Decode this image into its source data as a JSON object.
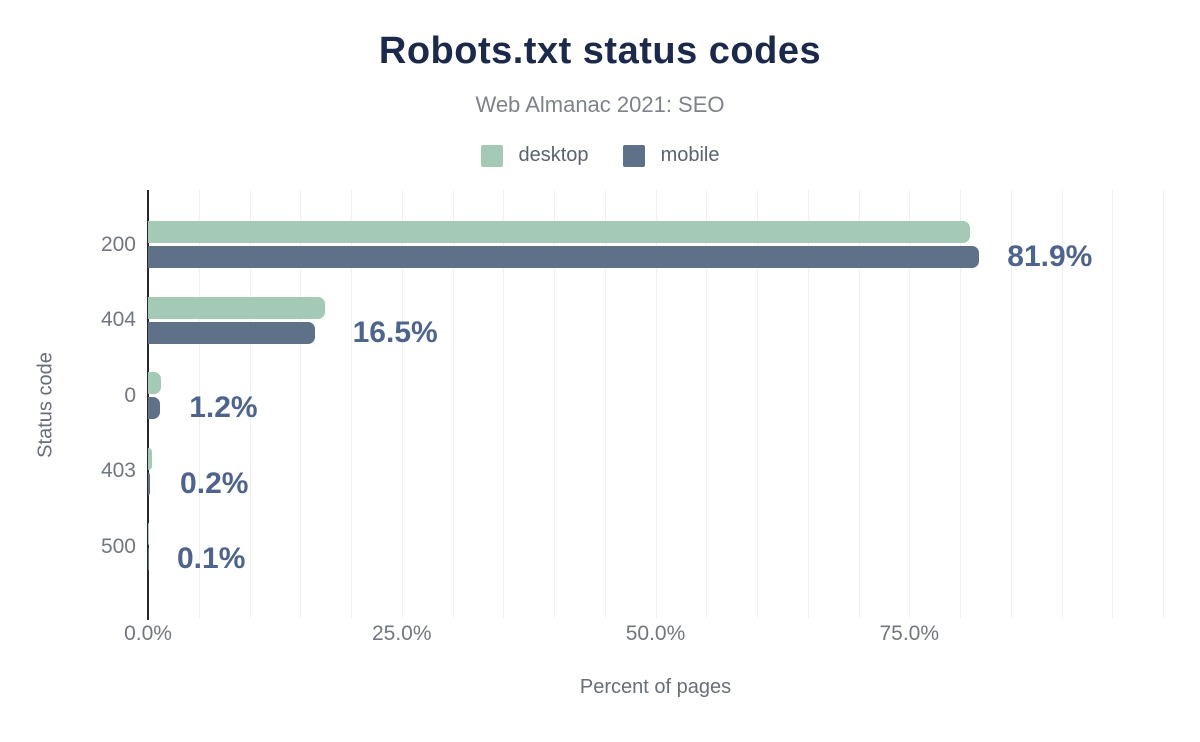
{
  "chart_data": {
    "type": "bar",
    "orientation": "horizontal",
    "title": "Robots.txt status codes",
    "subtitle": "Web Almanac 2021: SEO",
    "xlabel": "Percent of pages",
    "ylabel": "Status code",
    "categories": [
      "200",
      "404",
      "0",
      "403",
      "500"
    ],
    "series": [
      {
        "name": "desktop",
        "color": "#a4c9b6",
        "values": [
          81.0,
          17.4,
          1.3,
          0.4,
          0.1
        ]
      },
      {
        "name": "mobile",
        "color": "#5e7189",
        "values": [
          81.9,
          16.5,
          1.2,
          0.2,
          0.1
        ]
      }
    ],
    "value_labels": [
      "81.9%",
      "16.5%",
      "1.2%",
      "0.2%",
      "0.1%"
    ],
    "value_labels_series": "mobile",
    "value_label_color": "#4e648c",
    "xlim": [
      0,
      100
    ],
    "x_ticks": [
      {
        "value": 0,
        "label": "0.0%"
      },
      {
        "value": 25,
        "label": "25.0%"
      },
      {
        "value": 50,
        "label": "50.0%"
      },
      {
        "value": 75,
        "label": "75.0%"
      }
    ],
    "gridline_step_pct": 5,
    "grid": true,
    "legend_position": "top",
    "title_color": "#1b2a4a",
    "axis_line_color": "#26282e",
    "gridline_color": "#eeefef"
  }
}
